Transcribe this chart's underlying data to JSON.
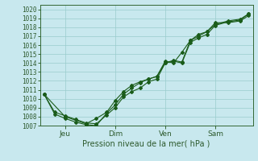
{
  "title": "Pression niveau de la mer( hPa )",
  "ylim": [
    1007,
    1020.5
  ],
  "xlim": [
    -2,
    100
  ],
  "yticks": [
    1007,
    1008,
    1009,
    1010,
    1011,
    1012,
    1013,
    1014,
    1015,
    1016,
    1017,
    1018,
    1019,
    1020
  ],
  "xtick_positions": [
    10,
    34,
    58,
    82
  ],
  "xtick_labels": [
    "Jeu",
    "Dim",
    "Ven",
    "Sam"
  ],
  "bg_color": "#c8e8ee",
  "grid_color": "#99cccc",
  "line_color": "#1a5c1a",
  "lines": [
    {
      "x": [
        0,
        5,
        10,
        15,
        20,
        25,
        30,
        34,
        38,
        42,
        46,
        50,
        54,
        58,
        62,
        66,
        70,
        74,
        78,
        82,
        88,
        94,
        98
      ],
      "y": [
        1010.5,
        1008.5,
        1008.1,
        1007.7,
        1007.3,
        1007.2,
        1008.2,
        1009.0,
        1010.2,
        1010.8,
        1011.2,
        1011.9,
        1012.2,
        1014.0,
        1014.2,
        1014.0,
        1016.3,
        1016.8,
        1017.2,
        1018.2,
        1018.6,
        1018.8,
        1019.5
      ]
    },
    {
      "x": [
        0,
        5,
        10,
        15,
        20,
        25,
        30,
        34,
        38,
        42,
        46,
        50,
        54,
        58,
        62,
        66,
        70,
        74,
        78,
        82,
        88,
        94,
        98
      ],
      "y": [
        1010.5,
        1008.3,
        1007.8,
        1007.4,
        1007.1,
        1007.0,
        1008.4,
        1009.3,
        1010.5,
        1011.2,
        1011.8,
        1012.2,
        1012.5,
        1014.2,
        1014.0,
        1015.2,
        1016.5,
        1017.0,
        1017.5,
        1018.5,
        1018.5,
        1018.7,
        1019.3
      ]
    },
    {
      "x": [
        0,
        10,
        20,
        25,
        30,
        34,
        38,
        42,
        46,
        50,
        54,
        58,
        62,
        66,
        70,
        74,
        78,
        82,
        88,
        94,
        98
      ],
      "y": [
        1010.5,
        1008.0,
        1007.2,
        1007.8,
        1008.5,
        1009.8,
        1010.8,
        1011.5,
        1011.9,
        1012.2,
        1012.5,
        1014.0,
        1014.3,
        1014.1,
        1016.5,
        1017.2,
        1017.5,
        1018.3,
        1018.7,
        1018.9,
        1019.5
      ]
    }
  ]
}
